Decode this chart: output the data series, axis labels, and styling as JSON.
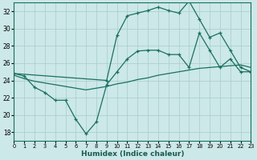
{
  "xlabel": "Humidex (Indice chaleur)",
  "bg_color": "#cce8e8",
  "line_color": "#1a7060",
  "grid_color": "#a8cccc",
  "xlim": [
    0,
    23
  ],
  "ylim": [
    17,
    33
  ],
  "yticks": [
    18,
    20,
    22,
    24,
    26,
    28,
    30,
    32
  ],
  "xticks": [
    0,
    1,
    2,
    3,
    4,
    5,
    6,
    7,
    8,
    9,
    10,
    11,
    12,
    13,
    14,
    15,
    16,
    17,
    18,
    19,
    20,
    21,
    22,
    23
  ],
  "line1_x": [
    0,
    1,
    2,
    3,
    4,
    5,
    6,
    7,
    8,
    9,
    10,
    11,
    12,
    13,
    14,
    15,
    16,
    17,
    18,
    19,
    20,
    21,
    22,
    23
  ],
  "line1_y": [
    24.8,
    24.5,
    23.2,
    22.6,
    21.7,
    21.7,
    19.5,
    17.8,
    19.2,
    23.5,
    25.0,
    26.5,
    27.4,
    27.5,
    27.5,
    27.0,
    27.0,
    25.5,
    29.5,
    27.5,
    25.5,
    26.5,
    25.0,
    25.0
  ],
  "line2_x": [
    0,
    9,
    10,
    11,
    12,
    13,
    14,
    15,
    16,
    17,
    18,
    19,
    20,
    21,
    22,
    23
  ],
  "line2_y": [
    24.8,
    24.0,
    29.2,
    31.5,
    31.8,
    32.1,
    32.5,
    32.1,
    31.8,
    33.2,
    31.1,
    29.0,
    29.5,
    27.5,
    25.5,
    25.0
  ],
  "line3_x": [
    0,
    1,
    2,
    3,
    4,
    5,
    6,
    7,
    8,
    9,
    10,
    11,
    12,
    13,
    14,
    15,
    16,
    17,
    18,
    19,
    20,
    21,
    22,
    23
  ],
  "line3_y": [
    24.6,
    24.2,
    23.9,
    23.7,
    23.5,
    23.3,
    23.1,
    22.9,
    23.1,
    23.3,
    23.6,
    23.8,
    24.1,
    24.3,
    24.6,
    24.8,
    25.0,
    25.2,
    25.4,
    25.5,
    25.6,
    25.7,
    25.8,
    25.5
  ],
  "figwidth": 3.2,
  "figheight": 2.0,
  "dpi": 100
}
